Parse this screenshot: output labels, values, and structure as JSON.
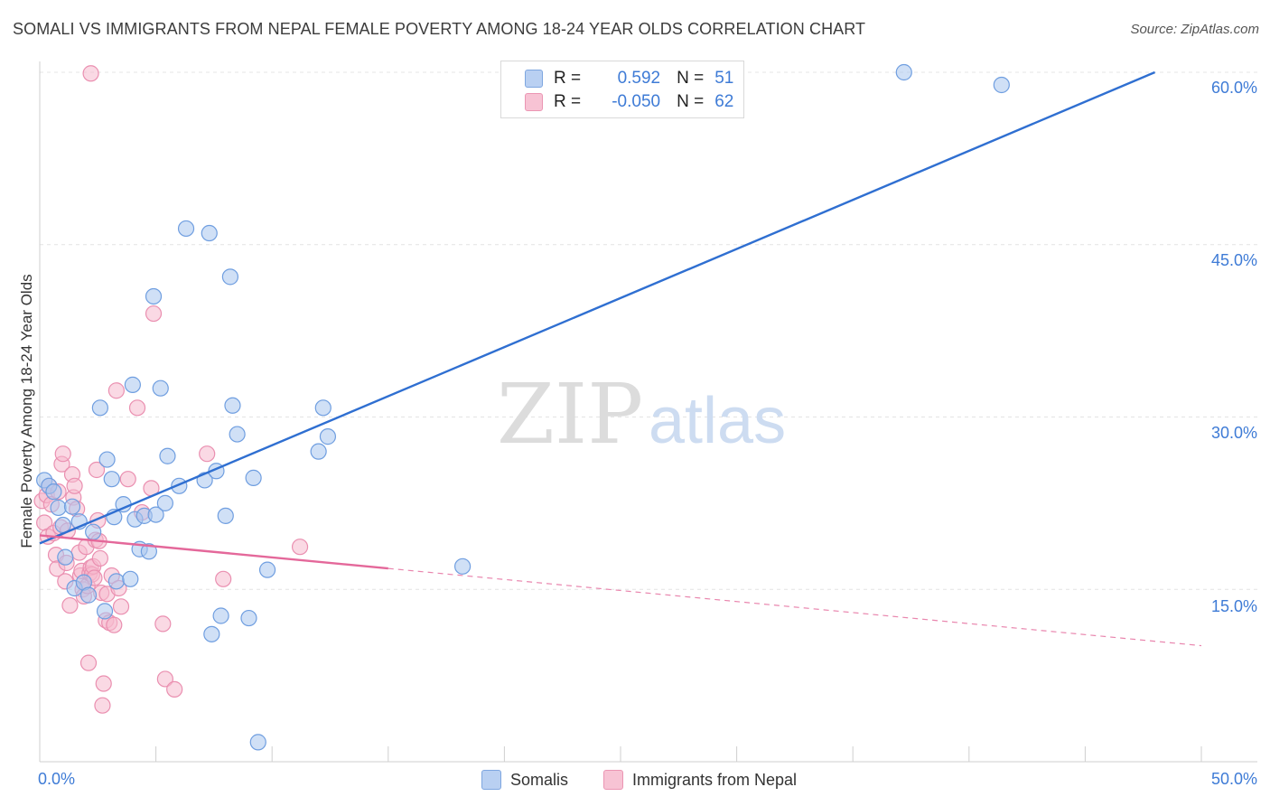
{
  "title": "SOMALI VS IMMIGRANTS FROM NEPAL FEMALE POVERTY AMONG 18-24 YEAR OLDS CORRELATION CHART",
  "source": "Source: ZipAtlas.com",
  "watermark": {
    "zip": "ZIP",
    "atlas": "atlas"
  },
  "colors": {
    "blue_fill": "#a9c6ee",
    "blue_stroke": "#6f9ee0",
    "blue_line": "#2f6fd1",
    "pink_fill": "#f5b9cd",
    "pink_stroke": "#ea8fb0",
    "pink_line": "#e4689a",
    "tick_text": "#3e7bd6",
    "grid": "#e4e4e4"
  },
  "legend": {
    "rows": [
      {
        "r_label": "R =",
        "r_value": "0.592",
        "n_label": "N =",
        "n_value": "51"
      },
      {
        "r_label": "R =",
        "r_value": "-0.050",
        "n_label": "N =",
        "n_value": "62"
      }
    ]
  },
  "bottom_legend": {
    "series1": "Somalis",
    "series2": "Immigrants from Nepal"
  },
  "chart_data": {
    "type": "scatter",
    "title": "SOMALI VS IMMIGRANTS FROM NEPAL FEMALE POVERTY AMONG 18-24 YEAR OLDS CORRELATION CHART",
    "xlabel": "",
    "ylabel": "Female Poverty Among 18-24 Year Olds",
    "xlim": [
      0,
      50
    ],
    "ylim": [
      0,
      60
    ],
    "x_tick_labels": [
      "0.0%",
      "50.0%"
    ],
    "y_ticks": [
      15,
      30,
      45,
      60
    ],
    "y_tick_labels": [
      "15.0%",
      "30.0%",
      "45.0%",
      "60.0%"
    ],
    "grid": true,
    "series": [
      {
        "name": "Somalis",
        "r": 0.592,
        "n": 51,
        "trend": {
          "x0": 0,
          "y0": 19.0,
          "x1": 48.0,
          "y1": 60.0,
          "dashed_after": null
        },
        "points": [
          [
            0.2,
            24.5
          ],
          [
            0.4,
            24.0
          ],
          [
            0.6,
            23.5
          ],
          [
            0.8,
            22.1
          ],
          [
            1.0,
            20.6
          ],
          [
            1.1,
            17.8
          ],
          [
            1.4,
            22.2
          ],
          [
            1.5,
            15.1
          ],
          [
            1.7,
            20.9
          ],
          [
            1.9,
            15.6
          ],
          [
            2.1,
            14.5
          ],
          [
            2.3,
            20.0
          ],
          [
            2.6,
            30.8
          ],
          [
            2.8,
            13.1
          ],
          [
            2.9,
            26.3
          ],
          [
            3.1,
            24.6
          ],
          [
            3.2,
            21.3
          ],
          [
            3.3,
            15.7
          ],
          [
            3.6,
            22.4
          ],
          [
            3.9,
            15.9
          ],
          [
            4.0,
            32.8
          ],
          [
            4.1,
            21.1
          ],
          [
            4.3,
            18.5
          ],
          [
            4.5,
            21.4
          ],
          [
            4.7,
            18.3
          ],
          [
            4.9,
            40.5
          ],
          [
            5.0,
            21.5
          ],
          [
            5.2,
            32.5
          ],
          [
            5.4,
            22.5
          ],
          [
            5.5,
            26.6
          ],
          [
            6.0,
            24.0
          ],
          [
            6.3,
            46.4
          ],
          [
            7.1,
            24.5
          ],
          [
            7.3,
            46.0
          ],
          [
            7.4,
            11.1
          ],
          [
            7.6,
            25.3
          ],
          [
            7.8,
            12.7
          ],
          [
            8.0,
            21.4
          ],
          [
            8.2,
            42.2
          ],
          [
            8.3,
            31.0
          ],
          [
            8.5,
            28.5
          ],
          [
            9.0,
            12.5
          ],
          [
            9.2,
            24.7
          ],
          [
            9.4,
            1.7
          ],
          [
            9.8,
            16.7
          ],
          [
            12.0,
            27.0
          ],
          [
            12.2,
            30.8
          ],
          [
            12.4,
            28.3
          ],
          [
            18.2,
            17.0
          ],
          [
            37.2,
            60.0
          ],
          [
            41.4,
            58.9
          ]
        ]
      },
      {
        "name": "Immigrants from Nepal",
        "r": -0.05,
        "n": 62,
        "trend": {
          "x0": 0,
          "y0": 19.7,
          "x1": 50,
          "y1": 10.1,
          "dashed_after": 15.0
        },
        "points": [
          [
            0.1,
            22.7
          ],
          [
            0.2,
            20.8
          ],
          [
            0.3,
            23.2
          ],
          [
            0.35,
            19.6
          ],
          [
            0.4,
            24.0
          ],
          [
            0.5,
            22.4
          ],
          [
            0.6,
            19.9
          ],
          [
            0.7,
            18.0
          ],
          [
            0.75,
            16.8
          ],
          [
            0.8,
            23.5
          ],
          [
            0.9,
            20.4
          ],
          [
            0.95,
            25.9
          ],
          [
            1.0,
            26.8
          ],
          [
            1.1,
            15.7
          ],
          [
            1.15,
            17.3
          ],
          [
            1.2,
            20.1
          ],
          [
            1.3,
            13.6
          ],
          [
            1.4,
            25.0
          ],
          [
            1.45,
            23.0
          ],
          [
            1.5,
            24.0
          ],
          [
            1.6,
            22.0
          ],
          [
            1.7,
            18.2
          ],
          [
            1.75,
            16.2
          ],
          [
            1.8,
            16.6
          ],
          [
            1.85,
            15.0
          ],
          [
            1.9,
            14.4
          ],
          [
            2.0,
            18.7
          ],
          [
            2.05,
            15.3
          ],
          [
            2.1,
            8.6
          ],
          [
            2.15,
            16.4
          ],
          [
            2.2,
            16.9
          ],
          [
            2.25,
            16.3
          ],
          [
            2.3,
            17.0
          ],
          [
            2.35,
            16.0
          ],
          [
            2.4,
            19.3
          ],
          [
            2.45,
            25.4
          ],
          [
            2.5,
            21.0
          ],
          [
            2.55,
            19.2
          ],
          [
            2.6,
            17.7
          ],
          [
            2.65,
            14.7
          ],
          [
            2.7,
            4.9
          ],
          [
            2.75,
            6.8
          ],
          [
            2.85,
            12.3
          ],
          [
            2.9,
            14.6
          ],
          [
            3.0,
            12.1
          ],
          [
            3.1,
            16.2
          ],
          [
            3.2,
            11.9
          ],
          [
            3.3,
            32.3
          ],
          [
            3.4,
            15.1
          ],
          [
            3.5,
            13.5
          ],
          [
            3.8,
            24.6
          ],
          [
            4.2,
            30.8
          ],
          [
            4.4,
            21.7
          ],
          [
            4.8,
            23.8
          ],
          [
            4.9,
            39.0
          ],
          [
            5.3,
            12.0
          ],
          [
            5.4,
            7.2
          ],
          [
            5.8,
            6.3
          ],
          [
            7.2,
            26.8
          ],
          [
            7.9,
            15.9
          ],
          [
            11.2,
            18.7
          ],
          [
            2.2,
            59.9
          ]
        ]
      }
    ]
  }
}
